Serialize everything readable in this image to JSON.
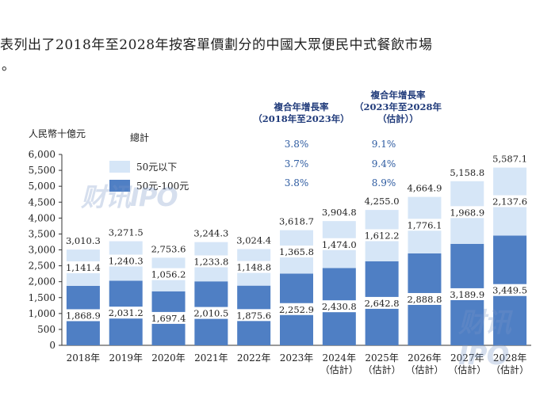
{
  "intro": {
    "line1": "表列出了2018年至2028年按客單價劃分的中國大眾便民中式餐飲市場",
    "line2": "。"
  },
  "cagr": {
    "header_hist": [
      "複合年增長率",
      "（2018年至2023年）"
    ],
    "header_proj": [
      "複合年增長率",
      "（2023年至2028年",
      "（估計））"
    ],
    "rows": [
      {
        "hist": "3.8%",
        "proj": "9.1%"
      },
      {
        "hist": "3.7%",
        "proj": "9.4%"
      },
      {
        "hist": "3.8%",
        "proj": "8.9%"
      }
    ]
  },
  "watermark": {
    "text": "财讯IPO"
  },
  "colors": {
    "bottom": "#4f7fc4",
    "top": "#d6e6f7",
    "label_bg": "#ffffff"
  },
  "chart_data": {
    "type": "bar",
    "stacked": true,
    "ylabel": "人民幣十億元",
    "ylim": [
      0,
      6000
    ],
    "yticks": [
      "0",
      "500",
      "1,000",
      "1,500",
      "2,000",
      "2,500",
      "3,000",
      "3,500",
      "4,000",
      "4,500",
      "5,000",
      "5,500",
      "6,000"
    ],
    "categories": [
      "2018年",
      "2019年",
      "2020年",
      "2021年",
      "2022年",
      "2023年",
      "2024年\n（估計）",
      "2025年\n（估計）",
      "2026年\n（估計）",
      "2027年\n（估計）",
      "2028年\n（估計）"
    ],
    "legend_title": "總計",
    "series": [
      {
        "name": "50元-100元",
        "values": [
          1868.9,
          2031.2,
          1697.4,
          2010.5,
          1875.6,
          2252.9,
          2430.8,
          2642.8,
          2888.8,
          3189.9,
          3449.5
        ],
        "labels": [
          "1,868.9",
          "2,031.2",
          "1,697.4",
          "2,010.5",
          "1,875.6",
          "2,252.9",
          "2,430.8",
          "2,642.8",
          "2,888.8",
          "3,189.9",
          "3,449.5"
        ]
      },
      {
        "name": "50元以下",
        "values": [
          1141.4,
          1240.3,
          1056.2,
          1233.8,
          1148.8,
          1365.8,
          1474.0,
          1612.2,
          1776.1,
          1968.9,
          2137.6
        ],
        "labels": [
          "1,141.4",
          "1,240.3",
          "1,056.2",
          "1,233.8",
          "1,148.8",
          "1,365.8",
          "1,474.0",
          "1,612.2",
          "1,776.1",
          "1,968.9",
          "2,137.6"
        ]
      }
    ],
    "totals": [
      3010.3,
      3271.5,
      2753.6,
      3244.3,
      3024.4,
      3618.7,
      3904.8,
      4255.0,
      4664.9,
      5158.8,
      5587.1
    ],
    "total_labels": [
      "3,010.3",
      "3,271.5",
      "2,753.6",
      "3,244.3",
      "3,024.4",
      "3,618.7",
      "3,904.8",
      "4,255.0",
      "4,664.9",
      "5,158.8",
      "5,587.1"
    ]
  }
}
